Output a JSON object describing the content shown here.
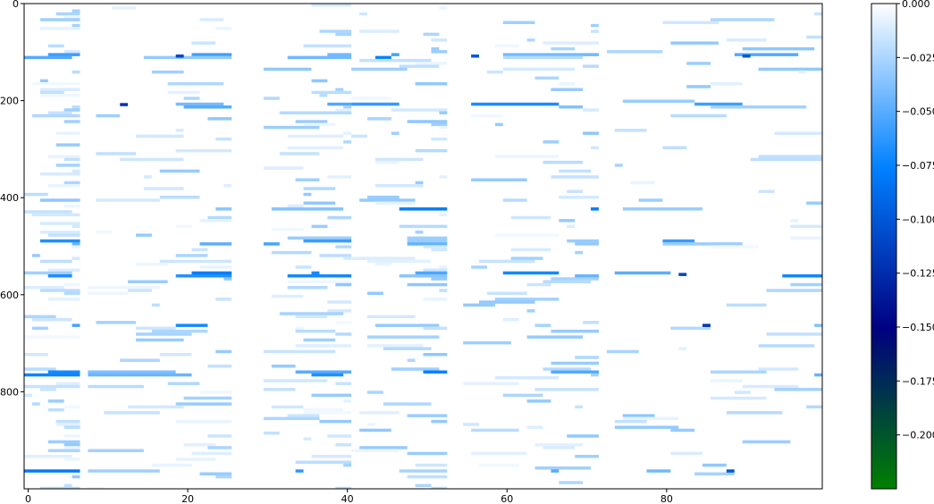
{
  "chart_data": {
    "type": "heatmap",
    "title": "",
    "xlabel": "",
    "ylabel": "",
    "x_range": [
      -0.5,
      99.5
    ],
    "y_range": [
      1000,
      0
    ],
    "x_ticks": [
      0,
      20,
      40,
      60,
      80
    ],
    "x_tick_labels": [
      "0",
      "20",
      "40",
      "60",
      "80"
    ],
    "y_ticks": [
      0,
      200,
      400,
      600,
      800
    ],
    "y_tick_labels": [
      "0",
      "200",
      "400",
      "600",
      "800"
    ],
    "colorbar": {
      "min": -0.225,
      "max": 0.0,
      "colormap": "ocean",
      "colors": [
        "#008000",
        "#000080",
        "#0080ff",
        "#ffffff"
      ],
      "ticks": [
        0.0,
        -0.025,
        -0.05,
        -0.075,
        -0.1,
        -0.125,
        -0.15,
        -0.175,
        -0.2
      ],
      "tick_labels": [
        "0.000",
        "−0.025",
        "−0.050",
        "−0.075",
        "−0.100",
        "−0.125",
        "−0.150",
        "−0.175",
        "−0.200"
      ]
    },
    "grid": false,
    "pattern": {
      "active_column_bands": [
        [
          0,
          7
        ],
        [
          8,
          26
        ],
        [
          30,
          41
        ],
        [
          41,
          53
        ],
        [
          55,
          72
        ],
        [
          73,
          100
        ]
      ],
      "strong_rows": [
        105,
        205,
        420,
        490,
        555,
        660,
        760,
        960
      ],
      "notable_values": [
        {
          "x": 19,
          "y": 105,
          "value": -0.11
        },
        {
          "x": 56,
          "y": 105,
          "value": -0.1
        },
        {
          "x": 90,
          "y": 105,
          "value": -0.1
        },
        {
          "x": 12,
          "y": 205,
          "value": -0.12
        },
        {
          "x": 82,
          "y": 555,
          "value": -0.11
        },
        {
          "x": 85,
          "y": 660,
          "value": -0.12
        },
        {
          "x": 88,
          "y": 960,
          "value": -0.1
        }
      ]
    }
  }
}
